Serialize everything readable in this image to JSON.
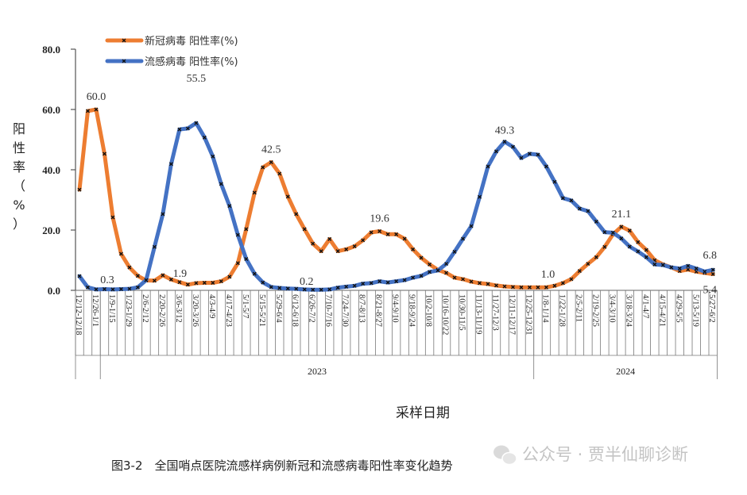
{
  "chart_data": {
    "type": "line",
    "title": "",
    "xlabel": "采样日期",
    "ylabel": "阳性率(%)",
    "ylim": [
      0,
      80
    ],
    "yticks": [
      "0.0",
      "20.0",
      "40.0",
      "60.0",
      "80.0"
    ],
    "grid": false,
    "legend_placement": "top-left",
    "x_tick_labels": [
      "12/12-12/18",
      "12/26-1/1",
      "1/9-1/15",
      "1/23-1/29",
      "2/6-2/12",
      "2/20-2/26",
      "3/6-3/12",
      "3/20-3/26",
      "4/3-4/9",
      "4/17-4/23",
      "5/1-5/7",
      "5/15-5/21",
      "5/29-6/4",
      "6/12-6/18",
      "6/26-7/2",
      "7/10-7/16",
      "7/24-7/30",
      "8/7-8/13",
      "8/21-8/27",
      "9/4-9/10",
      "9/18-9/24",
      "10/2-10/8",
      "10/16-10/22",
      "10/30-11/5",
      "11/13-11/19",
      "11/27-12/3",
      "12/11-12/17",
      "12/25-12/31",
      "1/8-1/14",
      "1/22-1/28",
      "2/5-2/11",
      "2/19-2/25",
      "3/4-3/10",
      "3/18-3/24",
      "4/1-4/7",
      "4/15-4/21",
      "4/29-5/5",
      "5/13-5/19",
      "5/27-6/2"
    ],
    "year_groups": [
      {
        "label": "",
        "first_week": 0,
        "last_week": 2
      },
      {
        "label": "2023",
        "first_week": 3,
        "last_week": 54
      },
      {
        "label": "2024",
        "first_week": 55,
        "last_week": 76
      }
    ],
    "series": [
      {
        "name": "新冠病毒 阳性率(%)",
        "color": "#ED7D31",
        "values": [
          33.4,
          59.5,
          60.0,
          45.3,
          24.2,
          12.1,
          7.6,
          4.8,
          3.3,
          3.2,
          5.0,
          3.6,
          2.7,
          1.9,
          2.4,
          2.5,
          2.5,
          3.0,
          4.5,
          9.0,
          20.3,
          32.4,
          40.8,
          42.5,
          38.7,
          31.1,
          25.3,
          20.3,
          15.5,
          13.0,
          17.0,
          13.0,
          13.6,
          14.6,
          16.6,
          19.2,
          19.6,
          18.6,
          18.6,
          17.1,
          13.6,
          10.8,
          8.6,
          6.8,
          5.8,
          4.2,
          3.7,
          2.9,
          2.4,
          2.1,
          1.6,
          1.3,
          1.1,
          1.0,
          1.0,
          1.0,
          1.0,
          1.5,
          2.4,
          3.7,
          6.4,
          8.8,
          11.0,
          14.4,
          18.6,
          21.1,
          19.8,
          16.0,
          13.4,
          10.0,
          8.6,
          7.6,
          6.4,
          6.9,
          6.2,
          5.8,
          5.4
        ]
      },
      {
        "name": "流感病毒 阳性率(%)",
        "color": "#4472C4",
        "values": [
          4.7,
          1.0,
          0.3,
          0.4,
          0.3,
          0.4,
          0.5,
          1.0,
          3.4,
          14.4,
          25.3,
          41.9,
          53.4,
          53.7,
          55.5,
          50.7,
          44.4,
          35.3,
          28.0,
          18.4,
          10.4,
          5.5,
          2.6,
          1.1,
          0.8,
          0.6,
          0.5,
          0.3,
          0.2,
          0.2,
          0.3,
          0.9,
          1.2,
          1.5,
          2.2,
          2.4,
          3.0,
          2.6,
          3.0,
          3.4,
          4.2,
          4.8,
          6.1,
          6.6,
          8.8,
          12.8,
          17.1,
          21.3,
          31.0,
          41.1,
          46.1,
          49.3,
          47.6,
          43.9,
          45.3,
          45.0,
          41.1,
          36.0,
          30.6,
          29.8,
          27.1,
          26.3,
          22.8,
          19.3,
          19.1,
          17.2,
          14.5,
          12.9,
          11.0,
          8.6,
          8.4,
          7.6,
          7.2,
          8.1,
          7.2,
          6.2,
          6.8
        ]
      }
    ],
    "data_labels": [
      {
        "series": 0,
        "index": 2,
        "text": "60.0"
      },
      {
        "series": 1,
        "index": 2,
        "text": "0.3"
      },
      {
        "series": 0,
        "index": 13,
        "text": "1.9"
      },
      {
        "series": 1,
        "index": 14,
        "text": "55.5"
      },
      {
        "series": 0,
        "index": 23,
        "text": "42.5"
      },
      {
        "series": 1,
        "index": 28,
        "text": "0.2"
      },
      {
        "series": 0,
        "index": 36,
        "text": "19.6"
      },
      {
        "series": 1,
        "index": 51,
        "text": "49.3"
      },
      {
        "series": 0,
        "index": 56,
        "text": "1.0"
      },
      {
        "series": 0,
        "index": 65,
        "text": "21.1"
      },
      {
        "series": 1,
        "index": 76,
        "text": "6.8"
      },
      {
        "series": 0,
        "index": 76,
        "text": "5.4"
      }
    ]
  },
  "caption": "图3-2　全国哨点医院流感样病例新冠和流感病毒阳性率变化趋势",
  "watermark": "公众号 · 贾半仙聊诊断"
}
